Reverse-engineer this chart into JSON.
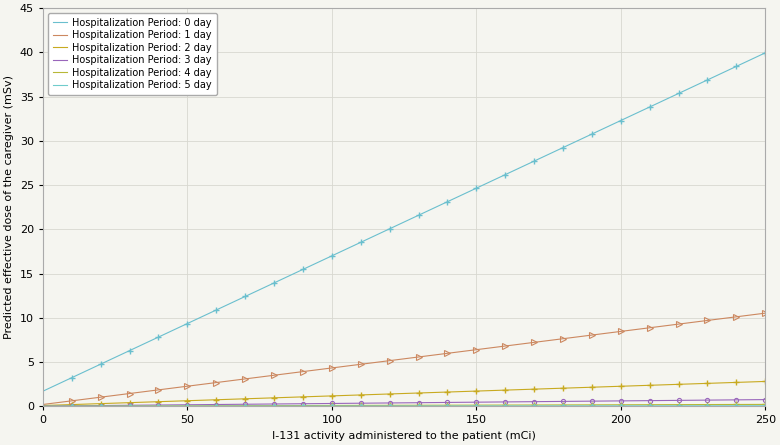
{
  "xlabel": "I-131 activity administered to the patient (mCi)",
  "ylabel": "Predicted effective dose of the caregiver (mSv)",
  "xlim": [
    0,
    250
  ],
  "ylim": [
    0,
    45
  ],
  "xticks": [
    0,
    50,
    100,
    150,
    200,
    250
  ],
  "yticks": [
    0,
    5,
    10,
    15,
    20,
    25,
    30,
    35,
    40,
    45
  ],
  "series": [
    {
      "label": "Hospitalization Period: 0 day",
      "color": "#6abfce",
      "marker": "+",
      "markersize": 4.5,
      "markeredgewidth": 1.0,
      "slope": 0.153,
      "intercept": 1.7,
      "lw": 0.8
    },
    {
      "label": "Hospitalization Period: 1 day",
      "color": "#cc8860",
      "marker": ">",
      "markersize": 4.0,
      "markeredgewidth": 0.8,
      "slope": 0.0413,
      "intercept": 0.2,
      "lw": 0.8
    },
    {
      "label": "Hospitalization Period: 2 day",
      "color": "#c8aa20",
      "marker": "+",
      "markersize": 4.5,
      "markeredgewidth": 1.0,
      "slope": 0.0109,
      "intercept": 0.08,
      "lw": 0.8
    },
    {
      "label": "Hospitalization Period: 3 day",
      "color": "#9966bb",
      "marker": "o",
      "markersize": 3.0,
      "markeredgewidth": 0.8,
      "slope": 0.00292,
      "intercept": 0.022,
      "lw": 0.8
    },
    {
      "label": "Hospitalization Period: 4 day",
      "color": "#b8b838",
      "marker": "+",
      "markersize": 4.5,
      "markeredgewidth": 1.0,
      "slope": 0.00081,
      "intercept": 0.006,
      "lw": 0.8
    },
    {
      "label": "Hospitalization Period: 5 day",
      "color": "#70cccc",
      "marker": "^",
      "markersize": 3.5,
      "markeredgewidth": 0.8,
      "slope": 0.000218,
      "intercept": 0.0016,
      "lw": 0.8
    }
  ],
  "legend_loc": "upper left",
  "legend_fontsize": 7.0,
  "grid_color": "#d8d8d0",
  "background_color": "#f5f5f0",
  "marker_step": 10,
  "tick_fontsize": 8,
  "label_fontsize": 8
}
